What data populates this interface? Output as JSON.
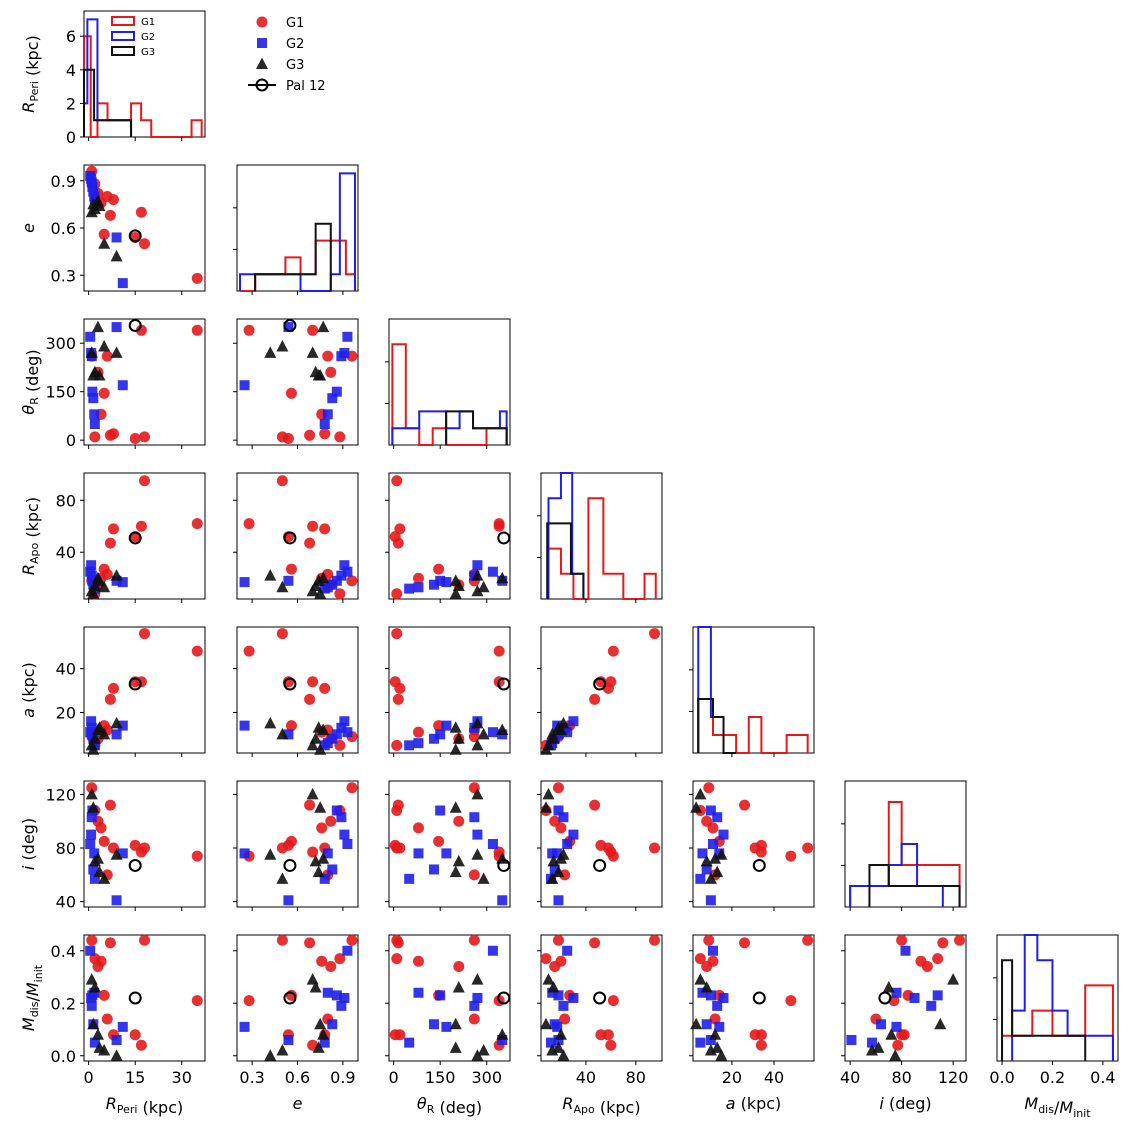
{
  "chart_data": {
    "type": "scatter",
    "title": "",
    "variables": [
      {
        "key": "rperi",
        "label": "R_Peri (kpc)",
        "range": [
          -1.5,
          37.5
        ],
        "ticks": [
          0,
          15,
          30
        ]
      },
      {
        "key": "e",
        "label": "e",
        "range": [
          0.2,
          1.0
        ],
        "ticks": [
          0.3,
          0.6,
          0.9
        ]
      },
      {
        "key": "theta",
        "label": "θ_R (deg)",
        "range": [
          -15,
          375
        ],
        "ticks": [
          0,
          150,
          300
        ]
      },
      {
        "key": "rapo",
        "label": "R_Apo (kpc)",
        "range": [
          4,
          101
        ],
        "ticks": [
          40,
          80
        ]
      },
      {
        "key": "a",
        "label": "a (kpc)",
        "range": [
          1.5,
          59
        ],
        "ticks": [
          20,
          40
        ]
      },
      {
        "key": "i",
        "label": "i (deg)",
        "range": [
          36,
          130
        ],
        "ticks": [
          40,
          80,
          120
        ]
      },
      {
        "key": "mdis",
        "label": "M_dis/M_init",
        "range": [
          -0.02,
          0.46
        ],
        "ticks": [
          0.0,
          0.2,
          0.4
        ]
      }
    ],
    "tick_labels": {
      "rperi": [
        "0",
        "15",
        "30"
      ],
      "e": [
        "0.3",
        "0.6",
        "0.9"
      ],
      "theta": [
        "0",
        "150",
        "300"
      ],
      "rapo": [
        "40",
        "80"
      ],
      "a": [
        "20",
        "40"
      ],
      "i": [
        "40",
        "80",
        "120"
      ],
      "mdis": [
        "0.0",
        "0.2",
        "0.4"
      ]
    },
    "axis_labels": {
      "rperi": {
        "main": "R",
        "sub": "Peri",
        "unit": " (kpc)"
      },
      "e": {
        "main": "e",
        "sub": "",
        "unit": ""
      },
      "theta": {
        "main": "θ",
        "sub": "R",
        "unit": " (deg)"
      },
      "rapo": {
        "main": "R",
        "sub": "Apo",
        "unit": " (kpc)"
      },
      "a": {
        "main": "a",
        "sub": "",
        "unit": " (kpc)"
      },
      "i": {
        "main": "i",
        "sub": "",
        "unit": " (deg)"
      },
      "mdis": {
        "main": "M",
        "sub": "dis",
        "main2": "M",
        "sub2": "init",
        "unit": ""
      }
    },
    "groups": [
      {
        "name": "G1",
        "color": "#e31a1c",
        "marker": "circle",
        "points": [
          [
            1,
            0.96,
            260,
            18,
            9,
            125,
            0.44
          ],
          [
            2,
            0.88,
            10,
            8,
            5,
            108,
            0.37
          ],
          [
            3,
            0.82,
            210,
            15,
            8,
            100,
            0.34
          ],
          [
            4,
            0.76,
            80,
            20,
            11,
            95,
            0.36
          ],
          [
            5,
            0.56,
            145,
            27,
            14,
            85,
            0.23
          ],
          [
            6,
            0.8,
            260,
            23,
            12,
            60,
            0.14
          ],
          [
            7,
            0.68,
            15,
            47,
            26,
            112,
            0.43
          ],
          [
            8,
            0.78,
            20,
            58,
            31,
            80,
            0.08
          ],
          [
            15,
            0.54,
            5,
            52,
            34,
            82,
            0.08
          ],
          [
            17,
            0.7,
            340,
            60,
            34,
            77,
            0.04
          ],
          [
            18,
            0.5,
            10,
            95,
            56,
            80,
            0.44
          ],
          [
            35,
            0.28,
            340,
            62,
            48,
            74,
            0.21
          ]
        ]
      },
      {
        "name": "G2",
        "color": "#1f1fe8",
        "marker": "square",
        "points": [
          [
            0.5,
            0.93,
            320,
            25,
            11,
            83,
            0.4
          ],
          [
            0.8,
            0.91,
            270,
            30,
            16,
            90,
            0.22
          ],
          [
            1.0,
            0.89,
            260,
            22,
            13,
            103,
            0.19
          ],
          [
            1.2,
            0.86,
            150,
            18,
            10,
            108,
            0.23
          ],
          [
            1.5,
            0.83,
            130,
            15,
            8,
            64,
            0.12
          ],
          [
            1.8,
            0.8,
            80,
            13,
            6,
            76,
            0.24
          ],
          [
            2.0,
            0.78,
            50,
            12,
            5,
            57,
            0.05
          ],
          [
            9,
            0.54,
            350,
            18,
            10,
            41,
            0.06
          ],
          [
            11,
            0.25,
            170,
            17,
            14,
            76,
            0.11
          ]
        ]
      },
      {
        "name": "G3",
        "color": "#111111",
        "marker": "triangle",
        "points": [
          [
            1.0,
            0.7,
            270,
            10,
            5,
            120,
            0.29
          ],
          [
            1.5,
            0.75,
            200,
            8,
            3,
            110,
            0.12
          ],
          [
            2.0,
            0.72,
            210,
            14,
            8,
            70,
            0.26
          ],
          [
            3.0,
            0.77,
            350,
            20,
            12,
            72,
            0.08
          ],
          [
            3.5,
            0.74,
            200,
            18,
            13,
            62,
            0.03
          ],
          [
            5.0,
            0.5,
            290,
            13,
            10,
            57,
            0.02
          ],
          [
            9.0,
            0.42,
            270,
            22,
            15,
            75,
            0.0
          ]
        ]
      },
      {
        "name": "Pal 12",
        "color": "#000000",
        "marker": "open-circle",
        "points": [
          [
            15,
            0.55,
            355,
            51,
            33,
            67,
            0.22
          ]
        ]
      }
    ],
    "histograms": {
      "rperi": {
        "range": [
          0,
          36
        ],
        "ymax": 7.5,
        "yticks": [
          0,
          2,
          4,
          6
        ],
        "G1": [
          [
            0,
            2,
            6
          ],
          [
            2,
            4,
            0
          ],
          [
            4,
            7,
            2
          ],
          [
            7,
            10,
            1
          ],
          [
            10,
            14,
            1
          ],
          [
            14,
            17,
            2
          ],
          [
            17,
            20,
            1
          ],
          [
            20,
            32,
            0
          ],
          [
            32,
            35,
            1
          ]
        ],
        "G2": [
          [
            0,
            1,
            2
          ],
          [
            1,
            4,
            7
          ],
          [
            4,
            7,
            1
          ],
          [
            7,
            10,
            1
          ],
          [
            10,
            14,
            1
          ]
        ],
        "G3": [
          [
            0,
            3,
            4
          ],
          [
            3,
            7,
            1
          ],
          [
            7,
            10,
            1
          ],
          [
            10,
            14,
            1
          ]
        ]
      },
      "e": {
        "range": [
          0.2,
          1.0
        ],
        "ymax": 7.5,
        "yticks": [],
        "G1": [
          [
            0.22,
            0.32,
            0
          ],
          [
            0.32,
            0.42,
            1
          ],
          [
            0.42,
            0.52,
            1
          ],
          [
            0.52,
            0.62,
            2
          ],
          [
            0.62,
            0.72,
            1
          ],
          [
            0.72,
            0.82,
            3
          ],
          [
            0.82,
            0.92,
            3
          ],
          [
            0.92,
            0.98,
            1
          ]
        ],
        "G2": [
          [
            0.22,
            0.32,
            1
          ],
          [
            0.32,
            0.42,
            1
          ],
          [
            0.42,
            0.52,
            1
          ],
          [
            0.52,
            0.62,
            1
          ],
          [
            0.62,
            0.72,
            0
          ],
          [
            0.72,
            0.82,
            0
          ],
          [
            0.82,
            0.88,
            1
          ],
          [
            0.88,
            0.98,
            7
          ]
        ],
        "G3": [
          [
            0.32,
            0.42,
            1
          ],
          [
            0.42,
            0.52,
            1
          ],
          [
            0.52,
            0.62,
            1
          ],
          [
            0.62,
            0.72,
            1
          ],
          [
            0.72,
            0.82,
            4
          ]
        ]
      },
      "theta": {
        "range": [
          0,
          360
        ],
        "ymax": 7.5,
        "yticks": [],
        "G1": [
          [
            10,
            50,
            6
          ],
          [
            50,
            90,
            1
          ],
          [
            90,
            130,
            0
          ],
          [
            130,
            170,
            1
          ],
          [
            170,
            210,
            0
          ],
          [
            210,
            250,
            0
          ],
          [
            250,
            290,
            0
          ],
          [
            290,
            330,
            1
          ],
          [
            330,
            350,
            1
          ]
        ],
        "G2": [
          [
            10,
            50,
            1
          ],
          [
            50,
            90,
            1
          ],
          [
            90,
            130,
            2
          ],
          [
            130,
            170,
            2
          ],
          [
            170,
            210,
            1
          ],
          [
            210,
            250,
            2
          ],
          [
            250,
            290,
            1
          ],
          [
            290,
            330,
            1
          ],
          [
            330,
            350,
            2
          ]
        ],
        "G3": [
          [
            170,
            210,
            2
          ],
          [
            210,
            250,
            2
          ],
          [
            250,
            290,
            1
          ],
          [
            290,
            330,
            1
          ],
          [
            330,
            350,
            1
          ]
        ]
      },
      "rapo": {
        "range": [
          4,
          101
        ],
        "ymax": 5,
        "yticks": [],
        "G1": [
          [
            10,
            20,
            2
          ],
          [
            20,
            30,
            1
          ],
          [
            30,
            42,
            0
          ],
          [
            42,
            54,
            4
          ],
          [
            54,
            70,
            1
          ],
          [
            70,
            87,
            0
          ],
          [
            87,
            96,
            1
          ]
        ],
        "G2": [
          [
            10,
            20,
            4
          ],
          [
            20,
            29,
            5
          ],
          [
            29,
            38,
            1
          ]
        ],
        "G3": [
          [
            9,
            20,
            3
          ],
          [
            20,
            28,
            3
          ],
          [
            28,
            38,
            1
          ]
        ]
      },
      "a": {
        "range": [
          1.5,
          59
        ],
        "ymax": 7,
        "yticks": [],
        "G1": [
          [
            4,
            11,
            3
          ],
          [
            11,
            16,
            1
          ],
          [
            16,
            22,
            1
          ],
          [
            22,
            28,
            0
          ],
          [
            28,
            34,
            2
          ],
          [
            34,
            46,
            0
          ],
          [
            46,
            56,
            1
          ]
        ],
        "G2": [
          [
            4,
            10,
            7
          ],
          [
            10,
            16,
            2
          ],
          [
            16,
            22,
            0
          ]
        ],
        "G3": [
          [
            4,
            11,
            3
          ],
          [
            11,
            16,
            2
          ],
          [
            16,
            22,
            0
          ]
        ]
      },
      "i": {
        "range": [
          36,
          130
        ],
        "ymax": 6,
        "yticks": [],
        "G1": [
          [
            40,
            55,
            1
          ],
          [
            55,
            70,
            1
          ],
          [
            70,
            80,
            5
          ],
          [
            80,
            92,
            2
          ],
          [
            92,
            102,
            2
          ],
          [
            102,
            125,
            2
          ]
        ],
        "G2": [
          [
            40,
            55,
            1
          ],
          [
            55,
            70,
            1
          ],
          [
            70,
            80,
            2
          ],
          [
            80,
            92,
            3
          ],
          [
            92,
            102,
            1
          ],
          [
            102,
            112,
            1
          ]
        ],
        "G3": [
          [
            55,
            70,
            2
          ],
          [
            70,
            80,
            1
          ],
          [
            80,
            92,
            1
          ],
          [
            92,
            125,
            1
          ]
        ]
      },
      "mdis": {
        "range": [
          -0.02,
          0.46
        ],
        "ymax": 5,
        "yticks": [],
        "G1": [
          [
            0.0,
            0.04,
            1
          ],
          [
            0.04,
            0.08,
            1
          ],
          [
            0.08,
            0.12,
            1
          ],
          [
            0.12,
            0.2,
            2
          ],
          [
            0.2,
            0.33,
            1
          ],
          [
            0.33,
            0.44,
            3
          ]
        ],
        "G2": [
          [
            0.04,
            0.09,
            2
          ],
          [
            0.09,
            0.14,
            5
          ],
          [
            0.14,
            0.2,
            4
          ],
          [
            0.2,
            0.26,
            2
          ],
          [
            0.26,
            0.39,
            1
          ],
          [
            0.39,
            0.44,
            1
          ]
        ],
        "G3": [
          [
            0.0,
            0.04,
            4
          ],
          [
            0.04,
            0.13,
            1
          ],
          [
            0.13,
            0.33,
            1
          ]
        ]
      }
    },
    "legend": {
      "main": {
        "placement": "top",
        "entries": [
          "G1",
          "G2",
          "G3",
          "Pal 12"
        ]
      },
      "hist": {
        "placement": "top-right",
        "entries": [
          "G1",
          "G2",
          "G3"
        ]
      }
    },
    "xlabel": "",
    "ylabel": "",
    "grid": false
  }
}
